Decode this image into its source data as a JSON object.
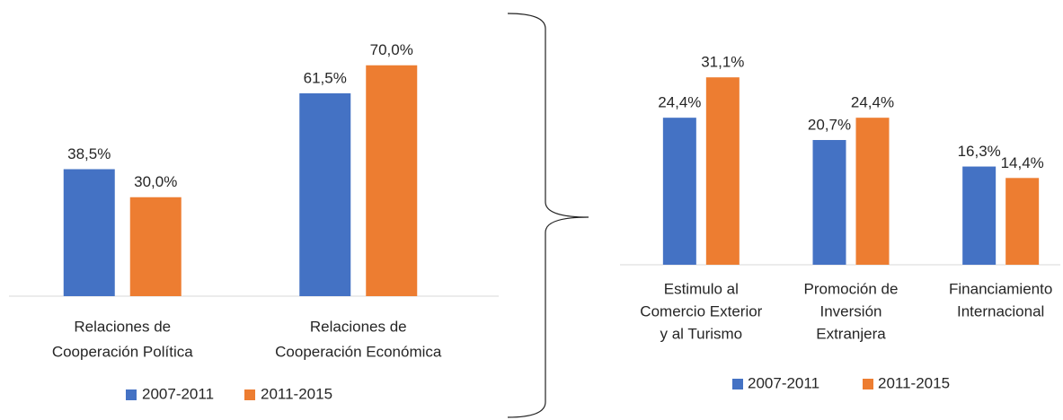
{
  "chart_data": [
    {
      "type": "bar",
      "categories": [
        [
          "Relaciones de",
          "Cooperación Política"
        ],
        [
          "Relaciones de",
          "Cooperación Económica"
        ]
      ],
      "series": [
        {
          "name": "2007-2011",
          "color": "#4472c4",
          "values": [
            38.5,
            61.5
          ],
          "value_labels": [
            "38,5%",
            "61,5%"
          ]
        },
        {
          "name": "2011-2015",
          "color": "#ed7d31",
          "values": [
            30.0,
            70.0
          ],
          "value_labels": [
            "30,0%",
            "70,0%"
          ]
        }
      ],
      "ylim": [
        0,
        80
      ],
      "legend": "bottom"
    },
    {
      "type": "bar",
      "categories": [
        [
          "Estimulo al",
          "Comercio Exterior",
          "y al Turismo"
        ],
        [
          "Promoción de",
          "Inversión",
          "Extranjera"
        ],
        [
          "Financiamiento",
          "Internacional"
        ]
      ],
      "series": [
        {
          "name": "2007-2011",
          "color": "#4472c4",
          "values": [
            24.4,
            20.7,
            16.3
          ],
          "value_labels": [
            "24,4%",
            "20,7%",
            "16,3%"
          ]
        },
        {
          "name": "2011-2015",
          "color": "#ed7d31",
          "values": [
            31.1,
            24.4,
            14.4
          ],
          "value_labels": [
            "31,1%",
            "24,4%",
            "14,4%"
          ]
        }
      ],
      "ylim": [
        0,
        35
      ],
      "legend": "bottom"
    }
  ]
}
